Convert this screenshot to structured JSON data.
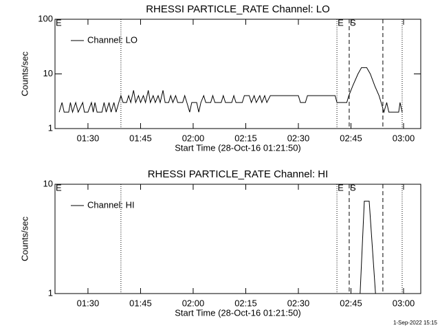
{
  "chart_data": [
    {
      "type": "line",
      "title": "RHESSI PARTICLE_RATE Channel: LO",
      "xlabel": "Start Time (28-Oct-16 01:21:50)",
      "ylabel": "Counts/sec",
      "log_y": true,
      "grid": false,
      "legend": "top-left",
      "xlim": [
        80.6,
        184.9
      ],
      "ylim": [
        1,
        100
      ],
      "xticks": [
        {
          "value": 90,
          "label": "01:30"
        },
        {
          "value": 105,
          "label": "01:45"
        },
        {
          "value": 120,
          "label": "02:00"
        },
        {
          "value": 135,
          "label": "02:15"
        },
        {
          "value": 150,
          "label": "02:30"
        },
        {
          "value": 165,
          "label": "02:45"
        },
        {
          "value": 180,
          "label": "03:00"
        }
      ],
      "yticks": [
        {
          "value": 1,
          "label": "1"
        },
        {
          "value": 10,
          "label": "10"
        },
        {
          "value": 100,
          "label": "100"
        }
      ],
      "vlines": [
        {
          "x": 99.4,
          "style": "dotted"
        },
        {
          "x": 161.0,
          "style": "dotted"
        },
        {
          "x": 164.5,
          "style": "dashed"
        },
        {
          "x": 174.1,
          "style": "dashed"
        },
        {
          "x": 179.6,
          "style": "dotted"
        }
      ],
      "annotations": [
        {
          "text": "E",
          "x": 80.6
        },
        {
          "text": "E",
          "x": 161.0
        },
        {
          "text": "S",
          "x": 164.5
        }
      ],
      "x": [
        81.8,
        82.6,
        83.2,
        84.5,
        85,
        85.6,
        86.5,
        87.2,
        88.5,
        89,
        90,
        91,
        91.5,
        92,
        92.6,
        94,
        94.6,
        95.2,
        96,
        96.6,
        97.4,
        98,
        98.8,
        99.4,
        100,
        101,
        101.6,
        102.2,
        103,
        103.6,
        104.4,
        105,
        105.8,
        106.4,
        107.2,
        107.8,
        108.6,
        109.2,
        110,
        110.6,
        111.4,
        112,
        113,
        113.6,
        114.2,
        115,
        115.6,
        117,
        117.6,
        118.2,
        119,
        119.6,
        121,
        121.6,
        122.2,
        123,
        123.6,
        125,
        125.6,
        126.2,
        128,
        128.6,
        129.2,
        131,
        131.6,
        132.2,
        134,
        134.6,
        136,
        136.6,
        137.4,
        138,
        139,
        139.6,
        140.4,
        141,
        142,
        150,
        150.6,
        152,
        152.6,
        160.5,
        161,
        163.8,
        164.4,
        165.5,
        167,
        168,
        169.5,
        170.5,
        171.8,
        173,
        173.6,
        174.4,
        175.2,
        175.8,
        178.6,
        179,
        179.6
      ],
      "series": [
        {
          "name": "Channel: LO",
          "color": "#000000",
          "values": [
            2,
            3,
            2,
            2,
            3,
            2,
            3,
            2,
            3,
            2,
            2,
            3,
            2,
            3,
            2,
            2,
            3,
            2,
            3,
            2,
            3,
            2,
            3,
            4,
            3,
            3,
            4,
            3,
            5,
            3,
            4,
            3,
            4,
            3,
            5,
            3,
            4,
            3,
            4,
            3,
            5,
            3,
            3,
            4,
            3,
            4,
            3,
            3,
            4,
            3,
            2,
            3,
            3,
            2,
            3,
            4,
            3,
            3,
            4,
            3,
            3,
            4,
            3,
            3,
            4,
            3,
            3,
            4,
            4,
            3,
            4,
            3,
            4,
            3,
            4,
            3,
            4,
            4,
            3,
            3,
            4,
            4,
            3,
            3,
            4,
            6,
            10,
            13,
            13,
            10,
            6,
            4,
            3,
            2,
            3,
            2,
            2,
            3,
            2
          ]
        }
      ]
    },
    {
      "type": "line",
      "title": "RHESSI PARTICLE_RATE Channel: HI",
      "xlabel": "Start Time (28-Oct-16 01:21:50)",
      "ylabel": "Counts/sec",
      "log_y": true,
      "grid": false,
      "legend": "top-left",
      "xlim": [
        80.6,
        184.9
      ],
      "ylim": [
        1,
        10
      ],
      "xticks": [
        {
          "value": 90,
          "label": "01:30"
        },
        {
          "value": 105,
          "label": "01:45"
        },
        {
          "value": 120,
          "label": "02:00"
        },
        {
          "value": 135,
          "label": "02:15"
        },
        {
          "value": 150,
          "label": "02:30"
        },
        {
          "value": 165,
          "label": "02:45"
        },
        {
          "value": 180,
          "label": "03:00"
        }
      ],
      "yticks": [
        {
          "value": 1,
          "label": "1"
        },
        {
          "value": 10,
          "label": "10"
        }
      ],
      "vlines": [
        {
          "x": 99.4,
          "style": "dotted"
        },
        {
          "x": 161.0,
          "style": "dotted"
        },
        {
          "x": 164.5,
          "style": "dashed"
        },
        {
          "x": 174.1,
          "style": "dashed"
        },
        {
          "x": 179.6,
          "style": "dotted"
        }
      ],
      "annotations": [
        {
          "text": "E",
          "x": 80.6
        },
        {
          "text": "E",
          "x": 161.0
        },
        {
          "text": "S",
          "x": 164.5
        }
      ],
      "x": [
        167.6,
        168.8,
        170.2,
        172.0
      ],
      "series": [
        {
          "name": "Channel: HI",
          "color": "#000000",
          "values": [
            1,
            7,
            7,
            1
          ]
        }
      ]
    }
  ],
  "footer": "1-Sep-2022 15:15"
}
